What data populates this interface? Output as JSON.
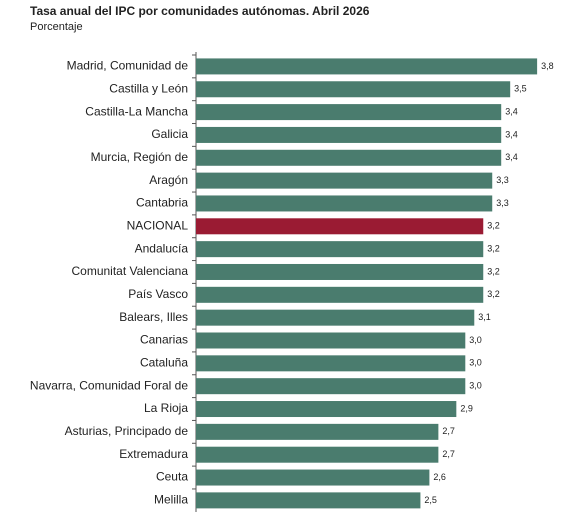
{
  "chart_data": {
    "type": "barh",
    "title": "Tasa anual del IPC por comunidades autónomas. Abril 2026",
    "subtitle": "Porcentaje",
    "categories": [
      "Madrid, Comunidad de",
      "Castilla y León",
      "Castilla-La Mancha",
      "Galicia",
      "Murcia, Región de",
      "Aragón",
      "Cantabria",
      "NACIONAL",
      "Andalucía",
      "Comunitat Valenciana",
      "País Vasco",
      "Balears, Illes",
      "Canarias",
      "Cataluña",
      "Navarra, Comunidad Foral de",
      "La Rioja",
      "Asturias, Principado de",
      "Extremadura",
      "Ceuta",
      "Melilla"
    ],
    "values": [
      3.8,
      3.5,
      3.4,
      3.4,
      3.4,
      3.3,
      3.3,
      3.2,
      3.2,
      3.2,
      3.2,
      3.1,
      3.0,
      3.0,
      3.0,
      2.9,
      2.7,
      2.7,
      2.6,
      2.5
    ],
    "value_labels": [
      "3,8",
      "3,5",
      "3,4",
      "3,4",
      "3,4",
      "3,3",
      "3,3",
      "3,2",
      "3,2",
      "3,2",
      "3,2",
      "3,1",
      "3,0",
      "3,0",
      "3,0",
      "2,9",
      "2,7",
      "2,7",
      "2,6",
      "2,5"
    ],
    "colors": [
      "#4a7c6e",
      "#4a7c6e",
      "#4a7c6e",
      "#4a7c6e",
      "#4a7c6e",
      "#4a7c6e",
      "#4a7c6e",
      "#9a1b33",
      "#4a7c6e",
      "#4a7c6e",
      "#4a7c6e",
      "#4a7c6e",
      "#4a7c6e",
      "#4a7c6e",
      "#4a7c6e",
      "#4a7c6e",
      "#4a7c6e",
      "#4a7c6e",
      "#4a7c6e",
      "#4a7c6e"
    ],
    "xlim": [
      0,
      4.3
    ]
  }
}
